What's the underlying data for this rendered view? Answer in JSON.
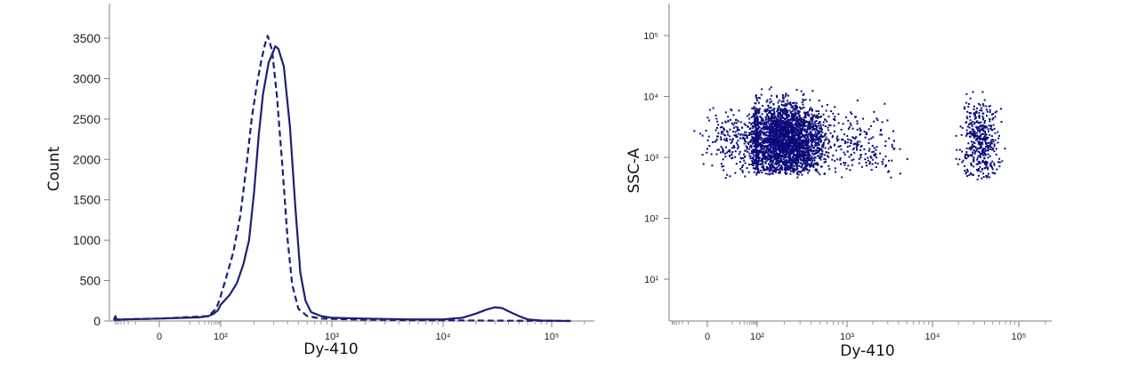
{
  "colors": {
    "series": "#1e1e78",
    "scatter": "#0a0a7a",
    "axis": "#7f7f7f",
    "text": "#222222"
  },
  "chart_data": [
    {
      "type": "line",
      "scale": "biexponential-x",
      "title": "",
      "xlabel": "Dy-410",
      "ylabel": "Count",
      "ylim": [
        0,
        3800
      ],
      "xlim": [
        -80,
        200000
      ],
      "grid": false,
      "legend": "none",
      "x_ticks": [
        {
          "value": 0,
          "label": "0"
        },
        {
          "value": 100,
          "label": "10²"
        },
        {
          "value": 1000,
          "label": "10³"
        },
        {
          "value": 10000,
          "label": "10⁴"
        },
        {
          "value": 100000,
          "label": "10⁵"
        }
      ],
      "y_ticks": [
        {
          "value": 0,
          "label": "0"
        },
        {
          "value": 500,
          "label": "500"
        },
        {
          "value": 1000,
          "label": "1000"
        },
        {
          "value": 1500,
          "label": "1500"
        },
        {
          "value": 2000,
          "label": "2000"
        },
        {
          "value": 2500,
          "label": "2500"
        },
        {
          "value": 3000,
          "label": "3000"
        },
        {
          "value": 3500,
          "label": "3500"
        }
      ],
      "series": [
        {
          "style": "solid",
          "points": [
            [
              -80,
              10
            ],
            [
              -70,
              60
            ],
            [
              -60,
              15
            ],
            [
              -30,
              20
            ],
            [
              0,
              30
            ],
            [
              20,
              45
            ],
            [
              40,
              60
            ],
            [
              60,
              90
            ],
            [
              80,
              130
            ],
            [
              100,
              200
            ],
            [
              120,
              320
            ],
            [
              140,
              470
            ],
            [
              160,
              700
            ],
            [
              180,
              1000
            ],
            [
              200,
              1600
            ],
            [
              220,
              2300
            ],
            [
              240,
              2800
            ],
            [
              270,
              3200
            ],
            [
              290,
              3300
            ],
            [
              310,
              3400
            ],
            [
              330,
              3370
            ],
            [
              370,
              3150
            ],
            [
              420,
              2400
            ],
            [
              470,
              1400
            ],
            [
              520,
              600
            ],
            [
              580,
              250
            ],
            [
              650,
              110
            ],
            [
              800,
              60
            ],
            [
              1000,
              40
            ],
            [
              2000,
              30
            ],
            [
              5000,
              20
            ],
            [
              10000,
              20
            ],
            [
              15000,
              40
            ],
            [
              20000,
              90
            ],
            [
              25000,
              140
            ],
            [
              30000,
              170
            ],
            [
              35000,
              160
            ],
            [
              40000,
              120
            ],
            [
              50000,
              60
            ],
            [
              60000,
              20
            ],
            [
              80000,
              5
            ],
            [
              150000,
              0
            ]
          ]
        },
        {
          "style": "dashed",
          "points": [
            [
              -80,
              10
            ],
            [
              -50,
              20
            ],
            [
              0,
              30
            ],
            [
              40,
              60
            ],
            [
              70,
              150
            ],
            [
              90,
              250
            ],
            [
              110,
              500
            ],
            [
              130,
              850
            ],
            [
              150,
              1300
            ],
            [
              170,
              1900
            ],
            [
              190,
              2500
            ],
            [
              210,
              2900
            ],
            [
              230,
              3200
            ],
            [
              250,
              3420
            ],
            [
              265,
              3530
            ],
            [
              290,
              3350
            ],
            [
              320,
              2800
            ],
            [
              360,
              1900
            ],
            [
              400,
              1000
            ],
            [
              440,
              450
            ],
            [
              500,
              150
            ],
            [
              600,
              60
            ],
            [
              800,
              30
            ],
            [
              1500,
              20
            ],
            [
              5000,
              10
            ],
            [
              20000,
              5
            ],
            [
              150000,
              0
            ]
          ]
        }
      ]
    },
    {
      "type": "scatter",
      "scale": "biexponential-x-log-y",
      "title": "",
      "xlabel": "Dy-410",
      "ylabel": "SSC-A",
      "xlim": [
        -100,
        200000
      ],
      "ylim": [
        3,
        300000
      ],
      "grid": false,
      "legend": "none",
      "x_ticks": [
        {
          "value": 0,
          "label": "0"
        },
        {
          "value": 100,
          "label": "10²"
        },
        {
          "value": 1000,
          "label": "10³"
        },
        {
          "value": 10000,
          "label": "10⁴"
        },
        {
          "value": 100000,
          "label": "10⁵"
        }
      ],
      "y_ticks": [
        {
          "value": 10,
          "label": "10¹"
        },
        {
          "value": 100,
          "label": "10²"
        },
        {
          "value": 1000,
          "label": "10³"
        },
        {
          "value": 10000,
          "label": "10⁴"
        },
        {
          "value": 100000,
          "label": "10⁵"
        }
      ],
      "populations": [
        {
          "name": "",
          "center": [
            200,
            2000
          ],
          "x_range": [
            60,
            600
          ],
          "y_range": [
            600,
            15000
          ],
          "density": "very high"
        },
        {
          "name": "",
          "center": [
            60,
            2000
          ],
          "x_range": [
            -100,
            200
          ],
          "y_range": [
            500,
            8000
          ],
          "density": "medium"
        },
        {
          "name": "",
          "center": [
            1500,
            1500
          ],
          "x_range": [
            500,
            5000
          ],
          "y_range": [
            500,
            10000
          ],
          "density": "low"
        },
        {
          "name": "",
          "center": [
            35000,
            2000
          ],
          "x_range": [
            20000,
            60000
          ],
          "y_range": [
            500,
            15000
          ],
          "density": "medium"
        }
      ]
    }
  ]
}
